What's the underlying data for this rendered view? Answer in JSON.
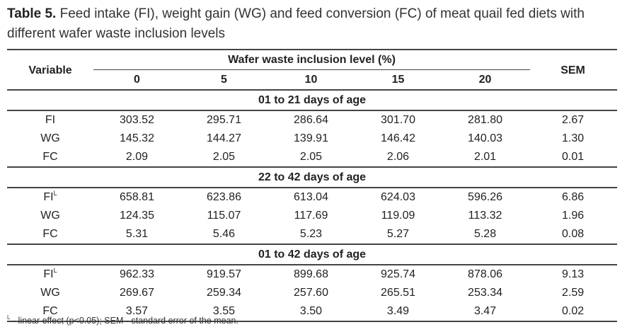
{
  "caption": {
    "label": "Table 5.",
    "text": " Feed intake (FI), weight gain (WG) and feed conversion (FC) of meat quail fed diets with different wafer waste inclusion levels"
  },
  "header": {
    "variable": "Variable",
    "group": "Wafer waste inclusion level (%)",
    "levels": [
      "0",
      "5",
      "10",
      "15",
      "20"
    ],
    "sem": "SEM"
  },
  "sections": [
    {
      "title": "01 to 21 days of age",
      "rows": [
        {
          "variable": "FI",
          "sup": "",
          "values": [
            "303.52",
            "295.71",
            "286.64",
            "301.70",
            "281.80"
          ],
          "sem": "2.67"
        },
        {
          "variable": "WG",
          "sup": "",
          "values": [
            "145.32",
            "144.27",
            "139.91",
            "146.42",
            "140.03"
          ],
          "sem": "1.30"
        },
        {
          "variable": "FC",
          "sup": "",
          "values": [
            "2.09",
            "2.05",
            "2.05",
            "2.06",
            "2.01"
          ],
          "sem": "0.01"
        }
      ]
    },
    {
      "title": "22 to 42 days of age",
      "rows": [
        {
          "variable": "FI",
          "sup": "L",
          "values": [
            "658.81",
            "623.86",
            "613.04",
            "624.03",
            "596.26"
          ],
          "sem": "6.86"
        },
        {
          "variable": "WG",
          "sup": "",
          "values": [
            "124.35",
            "115.07",
            "117.69",
            "119.09",
            "113.32"
          ],
          "sem": "1.96"
        },
        {
          "variable": "FC",
          "sup": "",
          "values": [
            "5.31",
            "5.46",
            "5.23",
            "5.27",
            "5.28"
          ],
          "sem": "0.08"
        }
      ]
    },
    {
      "title": "01 to 42 days of age",
      "rows": [
        {
          "variable": "FI",
          "sup": "L",
          "values": [
            "962.33",
            "919.57",
            "899.68",
            "925.74",
            "878.06"
          ],
          "sem": "9.13"
        },
        {
          "variable": "WG",
          "sup": "",
          "values": [
            "269.67",
            "259.34",
            "257.60",
            "265.51",
            "253.34"
          ],
          "sem": "2.59"
        },
        {
          "variable": "FC",
          "sup": "",
          "values": [
            "3.57",
            "3.55",
            "3.50",
            "3.49",
            "3.47"
          ],
          "sem": "0.02"
        }
      ]
    }
  ],
  "footnote": {
    "sup": "L",
    "text": " - linear effect (p<0.05); SEM - standard error of the mean."
  }
}
